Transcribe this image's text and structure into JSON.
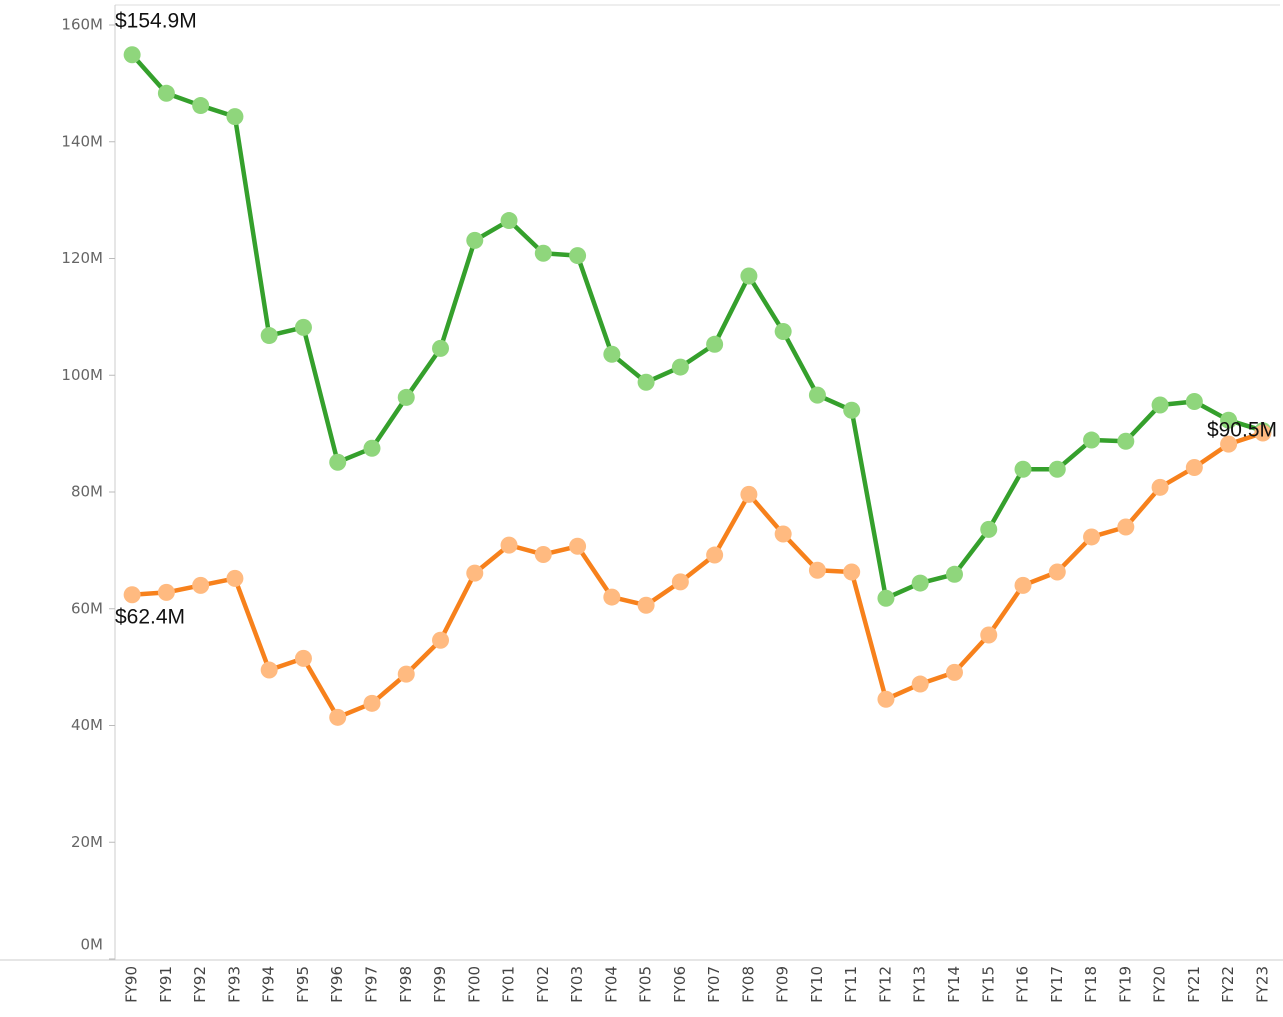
{
  "chart_data": {
    "type": "line",
    "categories": [
      "FY90",
      "FY91",
      "FY92",
      "FY93",
      "FY94",
      "FY95",
      "FY96",
      "FY97",
      "FY98",
      "FY99",
      "FY00",
      "FY01",
      "FY02",
      "FY03",
      "FY04",
      "FY05",
      "FY06",
      "FY07",
      "FY08",
      "FY09",
      "FY10",
      "FY11",
      "FY12",
      "FY13",
      "FY14",
      "FY15",
      "FY16",
      "FY17",
      "FY18",
      "FY19",
      "FY20",
      "FY21",
      "FY22",
      "FY23"
    ],
    "series": [
      {
        "color": "#35a02c",
        "marker_color": "#8fd67c",
        "values": [
          154.9,
          148.3,
          146.2,
          144.3,
          106.8,
          108.2,
          85.1,
          87.5,
          96.2,
          104.6,
          123.1,
          126.5,
          120.9,
          120.5,
          103.6,
          98.8,
          101.4,
          105.3,
          117.0,
          107.5,
          96.6,
          94.0,
          61.8,
          64.4,
          65.9,
          73.6,
          83.9,
          83.9,
          88.9,
          88.7,
          94.9,
          95.5,
          92.3,
          90.5
        ],
        "value_labels": [
          "$154.9M",
          null,
          null,
          null,
          null,
          null,
          null,
          null,
          null,
          null,
          null,
          null,
          null,
          null,
          null,
          null,
          null,
          null,
          null,
          null,
          null,
          null,
          null,
          null,
          null,
          null,
          null,
          null,
          null,
          null,
          null,
          null,
          null,
          "$90.5M"
        ]
      },
      {
        "color": "#f7811c",
        "marker_color": "#ffba80",
        "values": [
          62.4,
          62.8,
          64.0,
          65.2,
          49.5,
          51.5,
          41.4,
          43.8,
          48.8,
          54.6,
          66.1,
          70.9,
          69.3,
          70.7,
          62.0,
          60.6,
          64.6,
          69.2,
          79.6,
          72.8,
          66.6,
          66.3,
          44.5,
          47.1,
          49.1,
          55.5,
          64.0,
          66.3,
          72.3,
          74.0,
          80.8,
          84.2,
          88.2,
          90.1
        ],
        "value_labels": [
          "$62.4M",
          null,
          null,
          null,
          null,
          null,
          null,
          null,
          null,
          null,
          null,
          null,
          null,
          null,
          null,
          null,
          null,
          null,
          null,
          null,
          null,
          null,
          null,
          null,
          null,
          null,
          null,
          null,
          null,
          null,
          null,
          null,
          null,
          null
        ]
      }
    ],
    "ylim": [
      0,
      160
    ],
    "yticks": [
      {
        "value": 0,
        "label": "0M"
      },
      {
        "value": 20,
        "label": "20M"
      },
      {
        "value": 40,
        "label": "40M"
      },
      {
        "value": 60,
        "label": "60M"
      },
      {
        "value": 80,
        "label": "80M"
      },
      {
        "value": 100,
        "label": "100M"
      },
      {
        "value": 120,
        "label": "120M"
      },
      {
        "value": 140,
        "label": "140M"
      },
      {
        "value": 160,
        "label": "160M"
      }
    ],
    "grid": false
  }
}
